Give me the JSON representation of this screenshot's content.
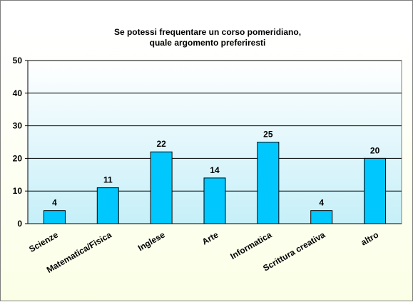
{
  "chart_data": {
    "type": "bar",
    "title_lines": [
      "Se potessi  frequentare un corso  pomeridiano,",
      "quale argomento preferiresti"
    ],
    "categories": [
      "Scienze",
      "Matematica/Fisica",
      "Inglese",
      "Arte",
      "Informatica",
      "Scrittura creativa",
      "altro"
    ],
    "values": [
      4,
      11,
      22,
      14,
      25,
      4,
      20
    ],
    "data_labels": [
      "4",
      "11",
      "22",
      "14",
      "25",
      "4",
      "20"
    ],
    "ylim": [
      0,
      50
    ],
    "yticks": [
      "0",
      "10",
      "20",
      "30",
      "40",
      "50"
    ],
    "grid": true,
    "colors": {
      "bar_fill": "#00c8ff",
      "bar_stroke": "#000000",
      "plot_top": "#ffffff",
      "plot_bottom": "#c6eff8"
    }
  }
}
